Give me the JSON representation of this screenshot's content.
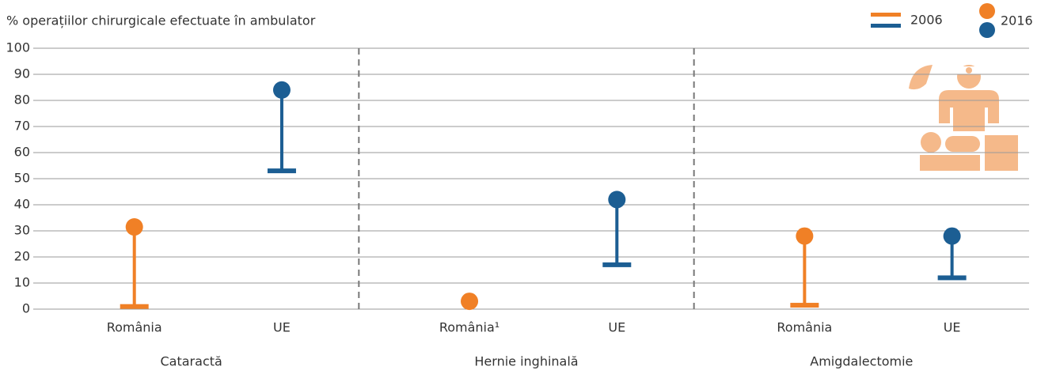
{
  "chart_data": {
    "type": "dumbbell",
    "title": "% operațiilor chirurgicale efectuate în ambulator",
    "groups": [
      "Cataractă",
      "Hernie inghinală",
      "Amigdalectomie"
    ],
    "categories": [
      "România",
      "UE",
      "România¹",
      "UE",
      "România",
      "UE"
    ],
    "colors": [
      "#f08026",
      "#1c5e93",
      "#f08026",
      "#1c5e93",
      "#f08026",
      "#1c5e93"
    ],
    "series": [
      {
        "name": "2006",
        "marker": "bar",
        "values": [
          1,
          53,
          null,
          17,
          1.5,
          12
        ]
      },
      {
        "name": "2016",
        "marker": "dot",
        "values": [
          31.5,
          84,
          3,
          42,
          28,
          28
        ]
      }
    ],
    "ylim": [
      0,
      100
    ],
    "yticks": [
      0,
      10,
      20,
      30,
      40,
      50,
      60,
      70,
      80,
      90,
      100
    ],
    "grid": true
  }
}
